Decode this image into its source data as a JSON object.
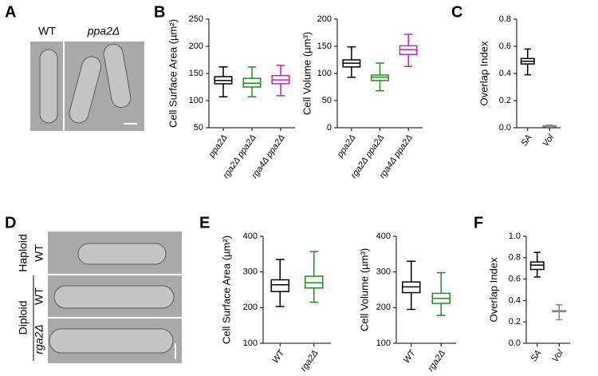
{
  "panel_letters": [
    "A",
    "B",
    "C",
    "D",
    "E",
    "F"
  ],
  "images": [
    {
      "labels": [
        "WT",
        "ppa2Δ"
      ]
    },
    {
      "labels": [
        "Haploid",
        "WT",
        "Diploid",
        "WT",
        "rga2Δ"
      ]
    }
  ],
  "chart_data": [
    {
      "type": "box",
      "ylabel": "Cell Surface Area (µm²)",
      "categories": [
        "ppa2Δ",
        "rga2Δ ppa2Δ",
        "rga4Δ ppa2Δ"
      ],
      "colors": [
        "#000000",
        "#1f8f1f",
        "#b82cb8"
      ],
      "ylim": [
        50,
        250
      ],
      "yticks": [
        50,
        100,
        150,
        200,
        250
      ],
      "boxes": [
        {
          "min": 107,
          "q1": 131,
          "median": 137,
          "q3": 144,
          "max": 162
        },
        {
          "min": 107,
          "q1": 125,
          "median": 132,
          "q3": 141,
          "max": 162
        },
        {
          "min": 109,
          "q1": 131,
          "median": 138,
          "q3": 146,
          "max": 165
        }
      ]
    },
    {
      "type": "box",
      "ylabel": "Cell Volume (µm³)",
      "categories": [
        "ppa2Δ",
        "rga2Δ ppa2Δ",
        "rga4Δ ppa2Δ"
      ],
      "colors": [
        "#000000",
        "#1f8f1f",
        "#b82cb8"
      ],
      "ylim": [
        0,
        200
      ],
      "yticks": [
        0,
        50,
        100,
        150,
        200
      ],
      "boxes": [
        {
          "min": 93,
          "q1": 112,
          "median": 119,
          "q3": 125,
          "max": 149
        },
        {
          "min": 68,
          "q1": 87,
          "median": 93,
          "q3": 97,
          "max": 119
        },
        {
          "min": 113,
          "q1": 135,
          "median": 144,
          "q3": 151,
          "max": 172
        }
      ]
    },
    {
      "type": "box",
      "ylabel": "Overlap Index",
      "categories": [
        "SA",
        "Vol"
      ],
      "colors": [
        "#000000",
        "#888888"
      ],
      "ylim": [
        0,
        0.8
      ],
      "yticks": [
        {
          "value": 0,
          "label": "0.0"
        },
        0.2,
        0.4,
        0.6,
        0.8
      ],
      "boxes": [
        {
          "min": 0.39,
          "q1": 0.47,
          "median": 0.49,
          "q3": 0.51,
          "max": 0.58
        },
        {
          "min": 0.005,
          "q1": 0.008,
          "median": 0.01,
          "q3": 0.015,
          "max": 0.02
        }
      ]
    },
    {
      "type": "box",
      "ylabel": "Cell Surface Area (µm²)",
      "categories": [
        "WT",
        "rga2Δ"
      ],
      "colors": [
        "#000000",
        "#1f8f1f"
      ],
      "ylim": [
        100,
        400
      ],
      "yticks": [
        100,
        200,
        300,
        400
      ],
      "boxes": [
        {
          "min": 203,
          "q1": 245,
          "median": 264,
          "q3": 278,
          "max": 335
        },
        {
          "min": 215,
          "q1": 255,
          "median": 270,
          "q3": 288,
          "max": 357
        }
      ]
    },
    {
      "type": "box",
      "ylabel": "Cell Volume (µm³)",
      "categories": [
        "WT",
        "rga2Δ"
      ],
      "colors": [
        "#000000",
        "#1f8f1f"
      ],
      "ylim": [
        100,
        400
      ],
      "yticks": [
        100,
        200,
        300,
        400
      ],
      "boxes": [
        {
          "min": 195,
          "q1": 242,
          "median": 258,
          "q3": 272,
          "max": 330
        },
        {
          "min": 178,
          "q1": 212,
          "median": 226,
          "q3": 240,
          "max": 298
        }
      ]
    },
    {
      "type": "box",
      "ylabel": "Overlap Index",
      "categories": [
        "SA",
        "Vol"
      ],
      "colors": [
        "#000000",
        "#888888"
      ],
      "ylim": [
        0,
        1.0
      ],
      "yticks": [
        {
          "value": 0,
          "label": "0.0"
        },
        0.2,
        0.4,
        0.6,
        0.8,
        {
          "value": 1,
          "label": "1.0"
        }
      ],
      "boxes": [
        {
          "min": 0.62,
          "q1": 0.69,
          "median": 0.73,
          "q3": 0.76,
          "max": 0.85
        },
        {
          "min": 0.22,
          "q1": 0.295,
          "median": 0.3,
          "q3": 0.305,
          "max": 0.36
        }
      ]
    }
  ]
}
